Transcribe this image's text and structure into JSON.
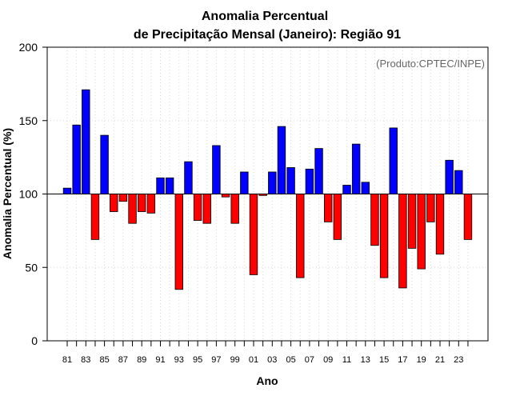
{
  "chart_data": {
    "type": "bar",
    "title": "Anomalia Percentual",
    "subtitle": "de Precipitação Mensal (Janeiro): Região 91",
    "xlabel": "Ano",
    "ylabel": "Anomalia Percentual (%)",
    "credit": "(Produto:CPTEC/INPE)",
    "ylim": [
      0,
      200
    ],
    "yticks": [
      0,
      50,
      100,
      150,
      200
    ],
    "baseline": 100,
    "xtick_labels": [
      "81",
      "83",
      "85",
      "87",
      "89",
      "91",
      "93",
      "95",
      "97",
      "99",
      "01",
      "03",
      "05",
      "07",
      "09",
      "11",
      "13",
      "15",
      "17",
      "19",
      "21",
      "23"
    ],
    "categories": [
      "81",
      "82",
      "83",
      "84",
      "85",
      "86",
      "87",
      "88",
      "89",
      "90",
      "91",
      "92",
      "93",
      "94",
      "95",
      "96",
      "97",
      "98",
      "99",
      "00",
      "01",
      "02",
      "03",
      "04",
      "05",
      "06",
      "07",
      "08",
      "09",
      "10",
      "11",
      "12",
      "13",
      "14",
      "15",
      "16",
      "17",
      "18",
      "19",
      "20",
      "21",
      "22",
      "23",
      "24"
    ],
    "values": [
      104,
      147,
      171,
      69,
      140,
      88,
      95,
      80,
      88,
      87,
      111,
      111,
      35,
      122,
      82,
      80,
      133,
      98,
      80,
      115,
      45,
      99,
      115,
      146,
      118,
      43,
      117,
      131,
      81,
      69,
      106,
      134,
      108,
      65,
      43,
      145,
      36,
      63,
      49,
      81,
      59,
      123,
      116,
      69
    ],
    "colors": {
      "above": "#0000ff",
      "below": "#ff0000",
      "grid": "#d9d9d9"
    }
  }
}
